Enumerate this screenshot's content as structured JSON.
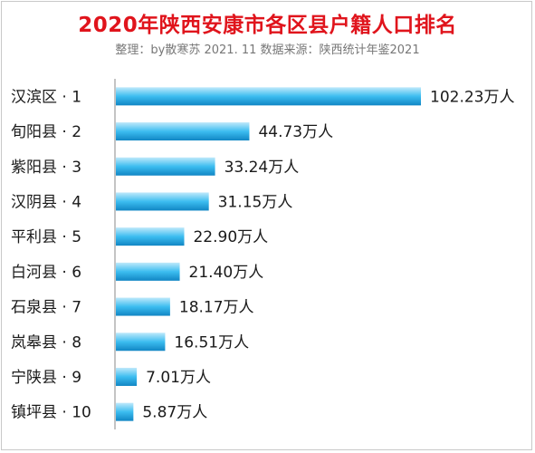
{
  "header": {
    "title": "2020年陕西安康市各区县户籍人口排名",
    "subtitle": "整理：by散寒苏  2021. 11  数据来源：陕西统计年鉴2021"
  },
  "colors": {
    "title": "#e0141c",
    "bar_light": "#bfe9fb",
    "bar_mid": "#3cbdf0",
    "bar_dark": "#1186c4",
    "axis": "#8a8a8a"
  },
  "chart_data": {
    "type": "bar",
    "orientation": "horizontal",
    "categories": [
      "汉滨区 · 1",
      "旬阳县 · 2",
      "紫阳县 · 3",
      "汉阴县 · 4",
      "平利县 · 5",
      "白河县 · 6",
      "石泉县 · 7",
      "岚皋县 · 8",
      "宁陕县 · 9",
      "镇坪县 · 10"
    ],
    "values": [
      102.23,
      44.73,
      33.24,
      31.15,
      22.9,
      21.4,
      18.17,
      16.51,
      7.01,
      5.87
    ],
    "value_labels": [
      "102.23万人",
      "44.73万人",
      "33.24万人",
      "31.15万人",
      "22.90万人",
      "21.40万人",
      "18.17万人",
      "16.51万人",
      "7.01万人",
      "5.87万人"
    ],
    "title": "2020年陕西安康市各区县户籍人口排名",
    "xlabel": "",
    "ylabel": "",
    "xlim": [
      0,
      102.23
    ],
    "grid": false,
    "legend": "none"
  }
}
